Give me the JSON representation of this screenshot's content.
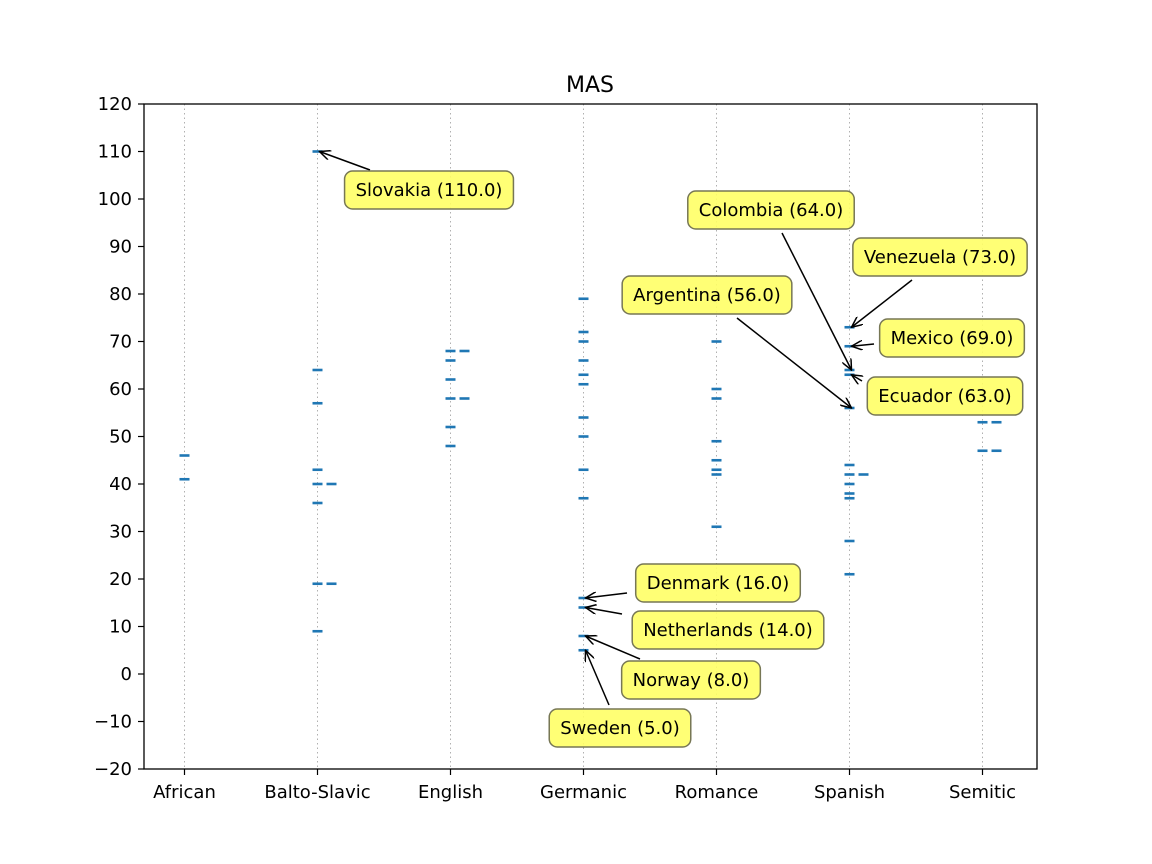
{
  "chart_data": {
    "type": "scatter",
    "title": "MAS",
    "xlabel": "",
    "ylabel": "",
    "ylim": [
      -20,
      120
    ],
    "yticks": [
      -20,
      -10,
      0,
      10,
      20,
      30,
      40,
      50,
      60,
      70,
      80,
      90,
      100,
      110,
      120
    ],
    "categories": [
      "African",
      "Balto-Slavic",
      "English",
      "Germanic",
      "Romance",
      "Spanish",
      "Semitic"
    ],
    "grid": "vertical dotted lines at categories",
    "marker": "horizontal dash",
    "color": "#1f77b4",
    "annotation_style": {
      "box_color": "#ffff66",
      "border_color": "#777755"
    },
    "points": [
      {
        "category": "African",
        "y": 46
      },
      {
        "category": "African",
        "y": 41
      },
      {
        "category": "Balto-Slavic",
        "y": 110
      },
      {
        "category": "Balto-Slavic",
        "y": 64
      },
      {
        "category": "Balto-Slavic",
        "y": 57
      },
      {
        "category": "Balto-Slavic",
        "y": 43
      },
      {
        "category": "Balto-Slavic",
        "y": 40
      },
      {
        "category": "Balto-Slavic",
        "y": 40,
        "offset": 1
      },
      {
        "category": "Balto-Slavic",
        "y": 36
      },
      {
        "category": "Balto-Slavic",
        "y": 19
      },
      {
        "category": "Balto-Slavic",
        "y": 19,
        "offset": 1
      },
      {
        "category": "Balto-Slavic",
        "y": 9
      },
      {
        "category": "English",
        "y": 68
      },
      {
        "category": "English",
        "y": 68,
        "offset": 1
      },
      {
        "category": "English",
        "y": 66
      },
      {
        "category": "English",
        "y": 62
      },
      {
        "category": "English",
        "y": 58
      },
      {
        "category": "English",
        "y": 58,
        "offset": 1
      },
      {
        "category": "English",
        "y": 52
      },
      {
        "category": "English",
        "y": 48
      },
      {
        "category": "Germanic",
        "y": 79
      },
      {
        "category": "Germanic",
        "y": 72
      },
      {
        "category": "Germanic",
        "y": 70
      },
      {
        "category": "Germanic",
        "y": 66
      },
      {
        "category": "Germanic",
        "y": 63
      },
      {
        "category": "Germanic",
        "y": 61
      },
      {
        "category": "Germanic",
        "y": 54
      },
      {
        "category": "Germanic",
        "y": 50
      },
      {
        "category": "Germanic",
        "y": 43
      },
      {
        "category": "Germanic",
        "y": 37
      },
      {
        "category": "Germanic",
        "y": 16
      },
      {
        "category": "Germanic",
        "y": 14
      },
      {
        "category": "Germanic",
        "y": 8
      },
      {
        "category": "Germanic",
        "y": 5
      },
      {
        "category": "Romance",
        "y": 70
      },
      {
        "category": "Romance",
        "y": 60
      },
      {
        "category": "Romance",
        "y": 58
      },
      {
        "category": "Romance",
        "y": 49
      },
      {
        "category": "Romance",
        "y": 45
      },
      {
        "category": "Romance",
        "y": 43
      },
      {
        "category": "Romance",
        "y": 42
      },
      {
        "category": "Romance",
        "y": 31
      },
      {
        "category": "Spanish",
        "y": 73
      },
      {
        "category": "Spanish",
        "y": 69
      },
      {
        "category": "Spanish",
        "y": 64
      },
      {
        "category": "Spanish",
        "y": 63
      },
      {
        "category": "Spanish",
        "y": 56
      },
      {
        "category": "Spanish",
        "y": 44
      },
      {
        "category": "Spanish",
        "y": 42
      },
      {
        "category": "Spanish",
        "y": 42,
        "offset": 1
      },
      {
        "category": "Spanish",
        "y": 40
      },
      {
        "category": "Spanish",
        "y": 38
      },
      {
        "category": "Spanish",
        "y": 37
      },
      {
        "category": "Spanish",
        "y": 28
      },
      {
        "category": "Spanish",
        "y": 21
      },
      {
        "category": "Semitic",
        "y": 53
      },
      {
        "category": "Semitic",
        "y": 53,
        "offset": 1
      },
      {
        "category": "Semitic",
        "y": 47
      },
      {
        "category": "Semitic",
        "y": 47,
        "offset": 1
      }
    ],
    "annotations": [
      {
        "text": "Slovakia (110.0)",
        "category": "Balto-Slavic",
        "y": 110
      },
      {
        "text": "Colombia (64.0)",
        "category": "Spanish",
        "y": 64
      },
      {
        "text": "Venezuela (73.0)",
        "category": "Spanish",
        "y": 73
      },
      {
        "text": "Argentina (56.0)",
        "category": "Spanish",
        "y": 56
      },
      {
        "text": "Mexico (69.0)",
        "category": "Spanish",
        "y": 69
      },
      {
        "text": "Ecuador (63.0)",
        "category": "Spanish",
        "y": 63
      },
      {
        "text": "Denmark (16.0)",
        "category": "Germanic",
        "y": 16
      },
      {
        "text": "Netherlands (14.0)",
        "category": "Germanic",
        "y": 14
      },
      {
        "text": "Norway (8.0)",
        "category": "Germanic",
        "y": 8
      },
      {
        "text": "Sweden (5.0)",
        "category": "Germanic",
        "y": 5
      }
    ]
  }
}
